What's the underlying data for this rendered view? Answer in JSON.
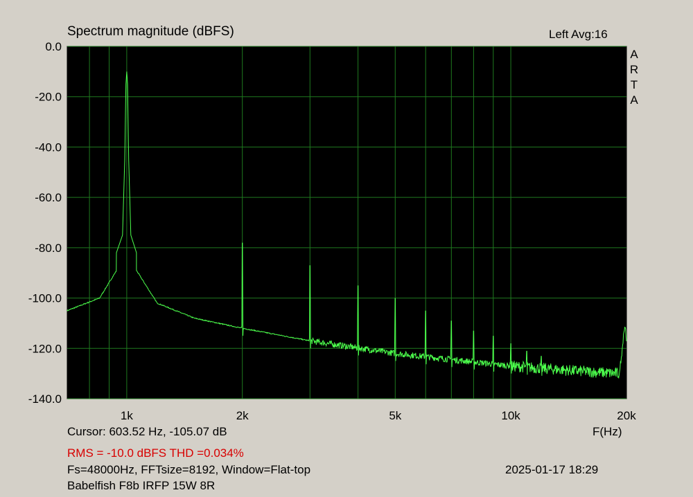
{
  "header": {
    "title": "Spectrum magnitude (dBFS)",
    "channel_avg": "Left  Avg:16",
    "brand_letters": [
      "A",
      "R",
      "T",
      "A"
    ]
  },
  "footer": {
    "cursor": "Cursor: 603.52 Hz, -105.07 dB",
    "x_unit": "F(Hz)",
    "rms_thd": "RMS =  -10.0 dBFS  THD =0.034%",
    "settings": "Fs=48000Hz, FFTsize=8192, Window=Flat-top",
    "datetime": "2025-01-17   18:29",
    "device": "Babelfish F8b IRFP 15W 8R"
  },
  "colors": {
    "background": "#d4d0c8",
    "plot_background": "#000000",
    "grid": "#1f7a1f",
    "trace": "#4cff4c",
    "rms_text": "#d80000"
  },
  "chart_data": {
    "type": "line",
    "x_scale": "log",
    "xlim": [
      700,
      20000
    ],
    "ylim": [
      -140,
      0
    ],
    "xlabel": "F(Hz)",
    "ylabel": "",
    "grid": true,
    "y_ticks": [
      0,
      -20,
      -40,
      -60,
      -80,
      -100,
      -120,
      -140
    ],
    "y_tick_labels": [
      "0.0",
      "-20.0",
      "-40.0",
      "-60.0",
      "-80.0",
      "-100.0",
      "-120.0",
      "-140.0"
    ],
    "x_tick_values": [
      1000,
      2000,
      5000,
      10000,
      20000
    ],
    "x_tick_labels": [
      "1k",
      "2k",
      "5k",
      "10k",
      "20k"
    ],
    "x_minor_grid": [
      800,
      900,
      1000,
      2000,
      3000,
      4000,
      5000,
      6000,
      7000,
      8000,
      9000,
      10000
    ],
    "series": [
      {
        "fundamental": {
          "x": 1000,
          "y": -10
        },
        "harmonics": [
          {
            "x": 2000,
            "y": -80
          },
          {
            "x": 3000,
            "y": -89
          },
          {
            "x": 4000,
            "y": -97
          },
          {
            "x": 5000,
            "y": -102
          },
          {
            "x": 6000,
            "y": -107
          },
          {
            "x": 7000,
            "y": -111
          },
          {
            "x": 8000,
            "y": -115
          },
          {
            "x": 9000,
            "y": -117
          },
          {
            "x": 10000,
            "y": -120
          },
          {
            "x": 11000,
            "y": -123
          },
          {
            "x": 12000,
            "y": -125
          }
        ],
        "noise_floor": [
          {
            "x": 700,
            "y": -105
          },
          {
            "x": 850,
            "y": -100
          },
          {
            "x": 950,
            "y": -88
          },
          {
            "x": 1050,
            "y": -88
          },
          {
            "x": 1200,
            "y": -102
          },
          {
            "x": 1500,
            "y": -108
          },
          {
            "x": 2000,
            "y": -112
          },
          {
            "x": 3000,
            "y": -117
          },
          {
            "x": 5000,
            "y": -122
          },
          {
            "x": 10000,
            "y": -127
          },
          {
            "x": 15000,
            "y": -129
          },
          {
            "x": 19000,
            "y": -130
          },
          {
            "x": 20000,
            "y": -130
          }
        ],
        "band_edge_peak": {
          "x": 19800,
          "y": -111
        }
      }
    ]
  }
}
